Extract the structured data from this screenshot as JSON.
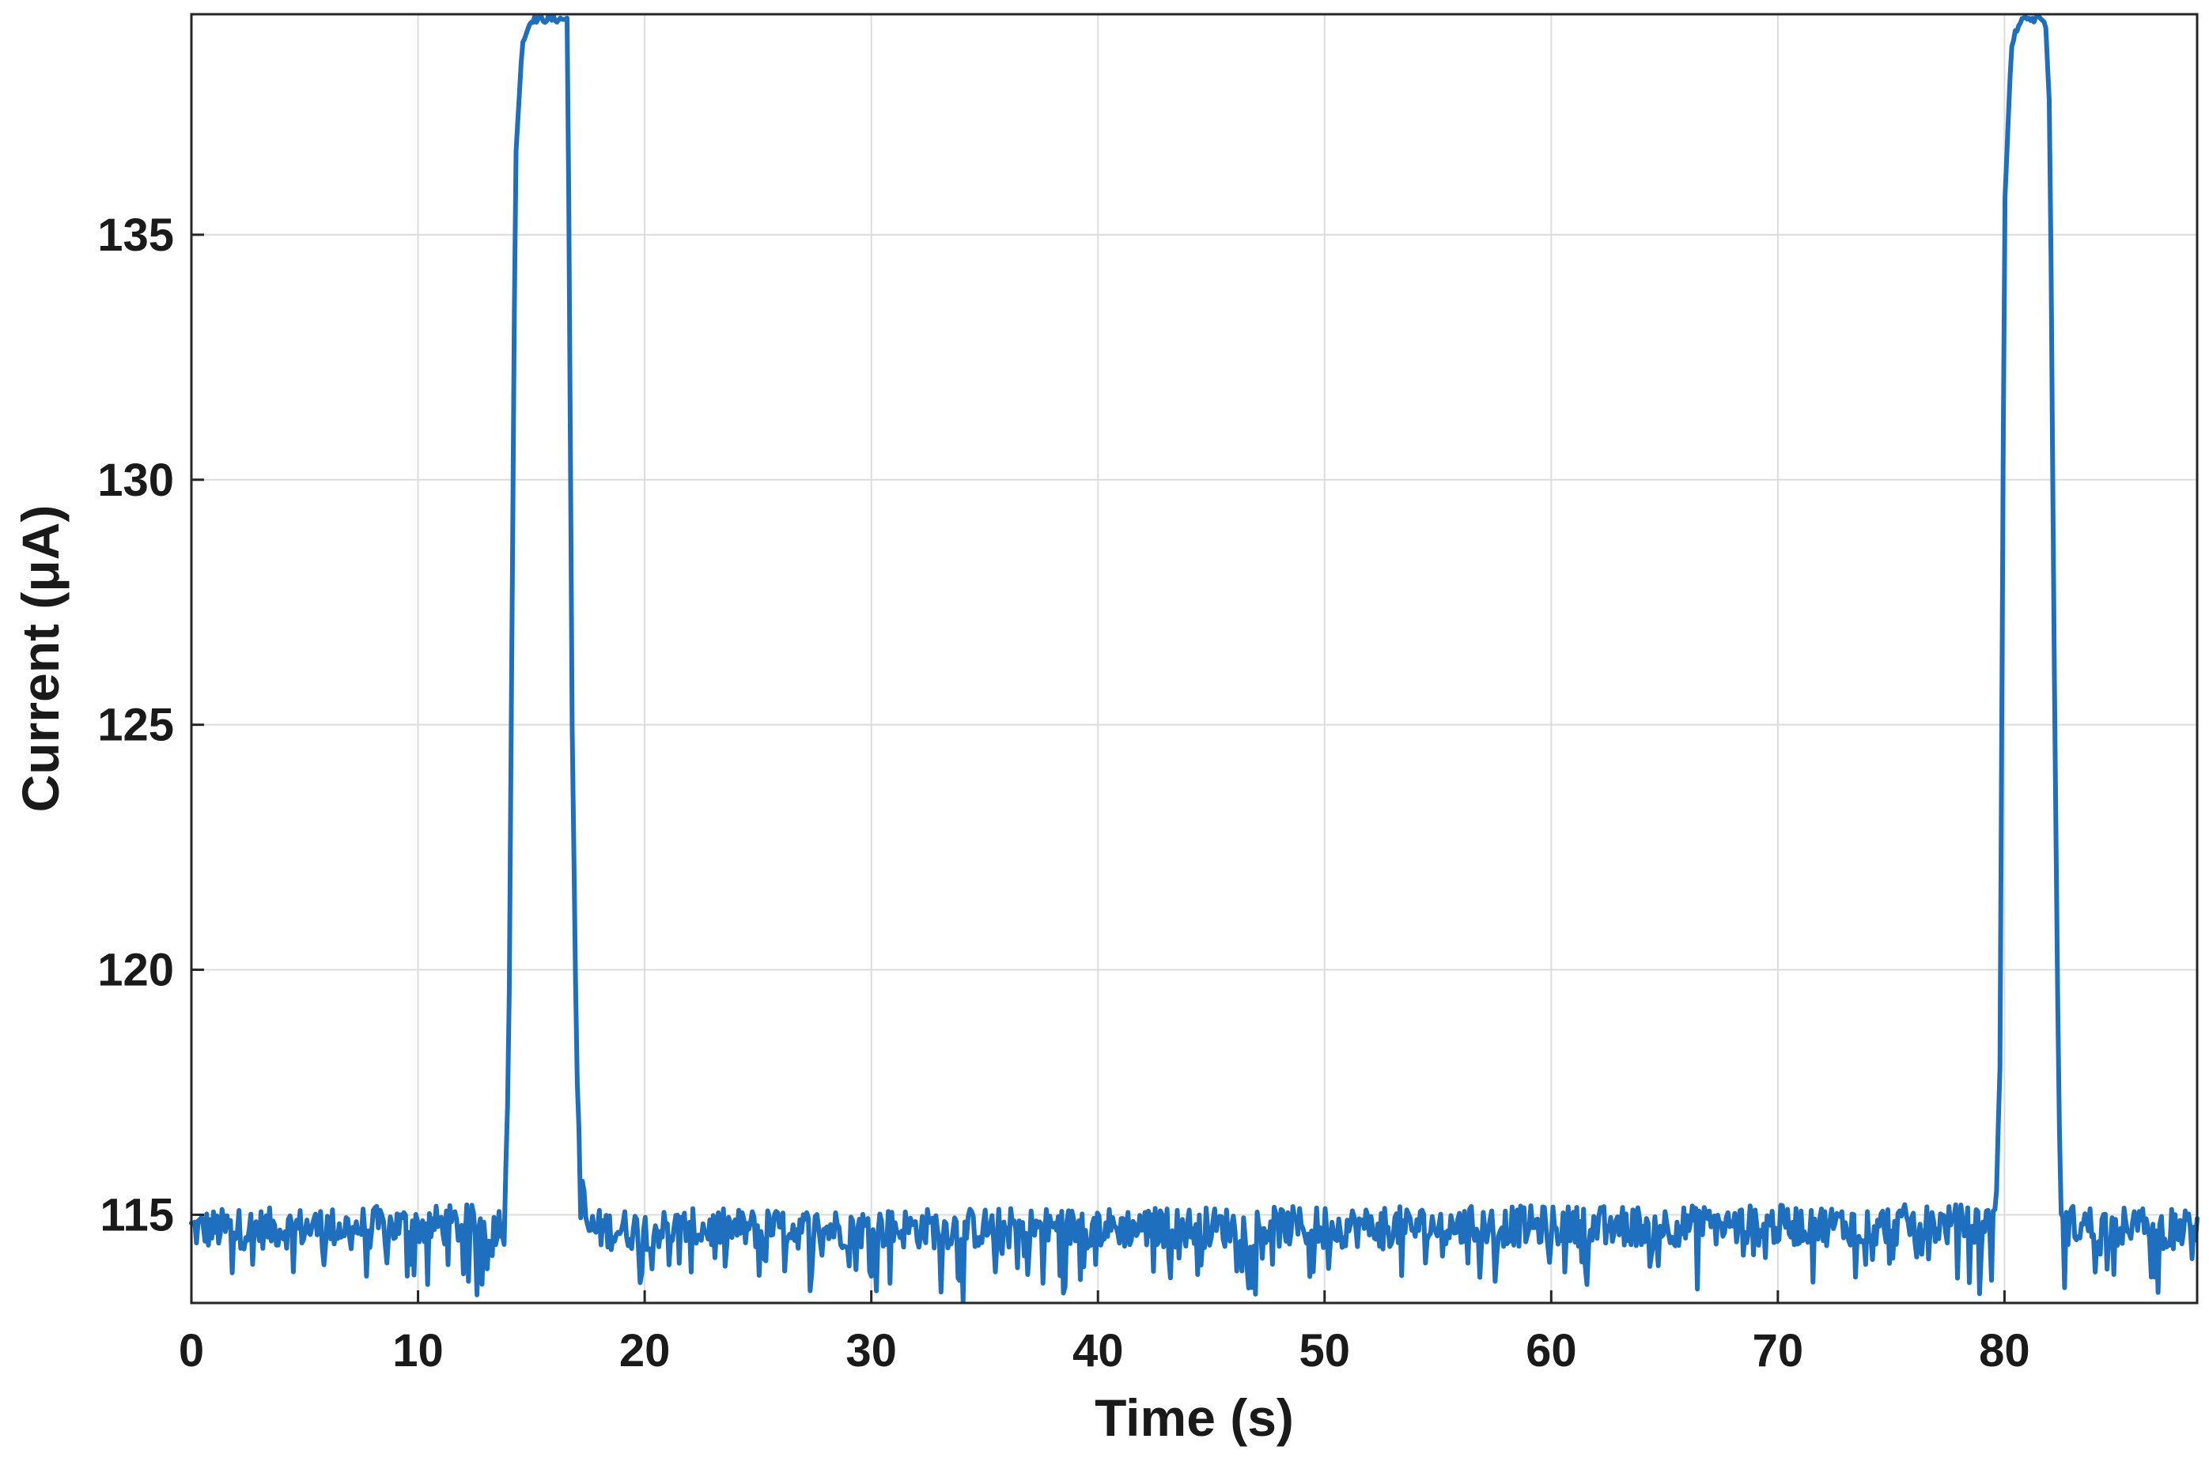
{
  "chart_data": {
    "type": "line",
    "title": "",
    "xlabel": "Time (s)",
    "ylabel": "Current (μA)",
    "xlim": [
      0,
      88.5
    ],
    "ylim": [
      113.2,
      139.5
    ],
    "xticks": [
      0,
      10,
      20,
      30,
      40,
      50,
      60,
      70,
      80
    ],
    "yticks": [
      115,
      120,
      125,
      130,
      135
    ],
    "grid": true,
    "legend": "none",
    "series": [
      {
        "color": "#1f6fbf",
        "baseline": 114.7,
        "noise_amplitude": 0.6,
        "x": [
          0,
          13.8,
          14.0,
          14.3,
          14.6,
          15.0,
          16.0,
          16.6,
          16.8,
          17.0,
          17.2,
          17.5,
          79.6,
          79.8,
          80.0,
          80.3,
          80.6,
          81.0,
          81.8,
          82.0,
          82.2,
          82.4,
          82.6,
          88.5
        ],
        "y": [
          114.7,
          114.8,
          118.0,
          136.5,
          138.9,
          139.4,
          139.4,
          139.4,
          125.0,
          118.0,
          115.5,
          114.7,
          114.8,
          118.0,
          135.5,
          138.8,
          139.3,
          139.4,
          139.4,
          137.5,
          126.0,
          117.0,
          114.8,
          114.7
        ]
      }
    ]
  }
}
